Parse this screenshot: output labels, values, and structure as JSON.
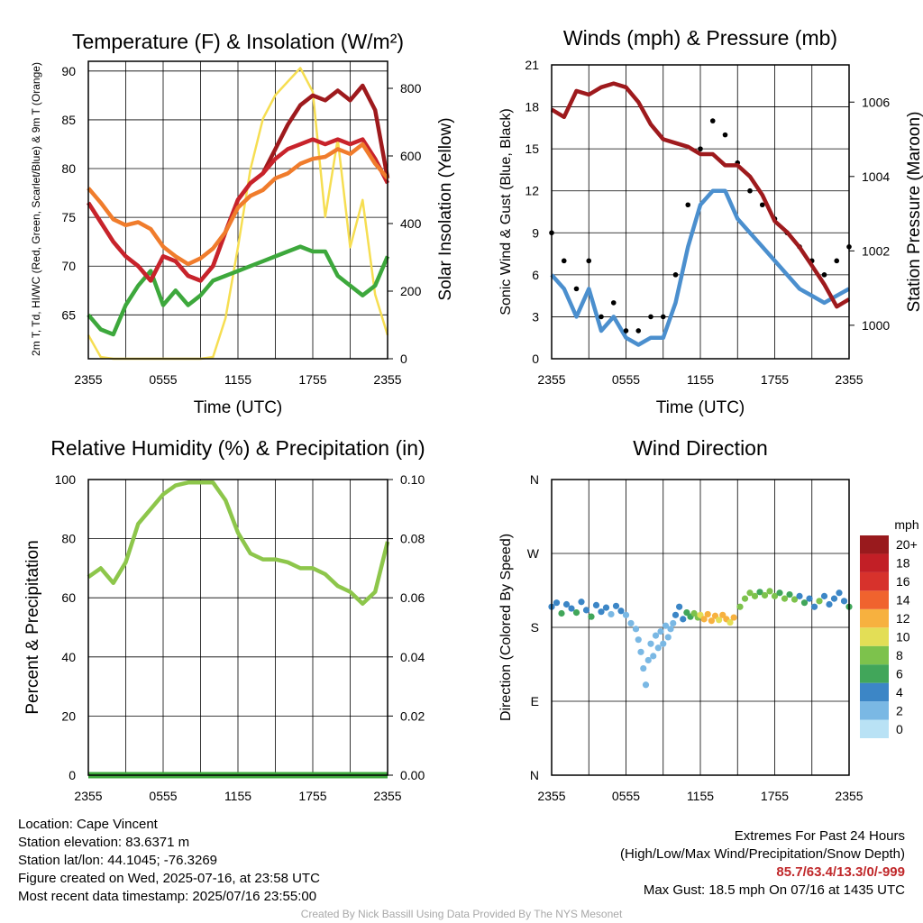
{
  "chart_data": [
    {
      "type": "line",
      "title": "Temperature (F) & Insolation (W/m²)",
      "xlabel": "Time (UTC)",
      "ylabel": "2m T, Td, HI/WC (Red, Green, Scarlet/Blue) & 9m T (Orange)",
      "y2label": "Solar Insolation (Yellow)",
      "x_ticks": [
        "2355",
        "0555",
        "1155",
        "1755",
        "2355"
      ],
      "ylim": [
        60.5,
        91
      ],
      "y_ticks": [
        "65",
        "70",
        "75",
        "80",
        "85",
        "90"
      ],
      "y2lim": [
        0,
        880
      ],
      "y2_ticks": [
        "0",
        "200",
        "400",
        "600",
        "800"
      ],
      "grid": true,
      "series": [
        {
          "name": "9m T",
          "color": "#f07c2c",
          "axis": "left",
          "x": [
            0,
            1,
            2,
            3,
            4,
            5,
            6,
            7,
            8,
            9,
            10,
            11,
            12,
            13,
            14,
            15,
            16,
            17,
            18,
            19,
            20,
            21,
            22,
            23,
            24
          ],
          "values": [
            78,
            76.5,
            74.8,
            74.2,
            74.5,
            73.8,
            72,
            71,
            70.2,
            70.8,
            71.8,
            73.5,
            76,
            77.2,
            77.8,
            79,
            79.5,
            80.5,
            81,
            81.2,
            82,
            81.5,
            82.5,
            80.5,
            79
          ]
        },
        {
          "name": "2m T",
          "color": "#c8232b",
          "axis": "left",
          "x": [
            0,
            1,
            2,
            3,
            4,
            5,
            6,
            7,
            8,
            9,
            10,
            11,
            12,
            13,
            14,
            15,
            16,
            17,
            18,
            19,
            20,
            21,
            22,
            23,
            24
          ],
          "values": [
            76.5,
            74.5,
            72.5,
            71,
            70,
            68.5,
            71,
            70.5,
            69,
            68.5,
            70,
            73.5,
            76.8,
            78.5,
            79.5,
            81,
            82,
            82.5,
            83,
            82.5,
            83,
            82.5,
            83,
            81,
            78.5
          ]
        },
        {
          "name": "HI/WC",
          "color": "#9e1a1d",
          "axis": "left",
          "x": [
            0,
            1,
            2,
            3,
            4,
            5,
            6,
            7,
            8,
            9,
            10,
            11,
            12,
            13,
            14,
            15,
            16,
            17,
            18,
            19,
            20,
            21,
            22,
            23,
            24
          ],
          "values": [
            76.5,
            74.5,
            72.5,
            71,
            70,
            68.5,
            71,
            70.5,
            69,
            68.5,
            70,
            73.5,
            76.8,
            78.5,
            79.5,
            82,
            84.5,
            86.5,
            87.5,
            87,
            88,
            87,
            88.5,
            86,
            79
          ]
        },
        {
          "name": "2m Td",
          "color": "#3da83c",
          "axis": "left",
          "x": [
            0,
            1,
            2,
            3,
            4,
            5,
            6,
            7,
            8,
            9,
            10,
            11,
            12,
            13,
            14,
            15,
            16,
            17,
            18,
            19,
            20,
            21,
            22,
            23,
            24
          ],
          "values": [
            65,
            63.5,
            63,
            66,
            68,
            69.5,
            66,
            67.5,
            66,
            67,
            68.5,
            69,
            69.5,
            70,
            70.5,
            71,
            71.5,
            72,
            71.5,
            71.5,
            69,
            68,
            67,
            68,
            71
          ]
        },
        {
          "name": "Solar Insolation",
          "color": "#f6de52",
          "axis": "right",
          "x": [
            0,
            1,
            2,
            3,
            4,
            5,
            6,
            7,
            8,
            9,
            10,
            11,
            12,
            13,
            14,
            15,
            16,
            17,
            18,
            19,
            20,
            21,
            22,
            23,
            24
          ],
          "values": [
            70,
            5,
            0,
            0,
            0,
            0,
            0,
            0,
            0,
            0,
            5,
            120,
            330,
            560,
            710,
            780,
            820,
            860,
            790,
            420,
            650,
            330,
            470,
            190,
            70
          ]
        }
      ]
    },
    {
      "type": "line",
      "title": "Winds (mph) & Pressure (mb)",
      "xlabel": "Time (UTC)",
      "ylabel": "Sonic Wind & Gust (Blue, Black)",
      "y2label": "Station Pressure (Maroon)",
      "x_ticks": [
        "2355",
        "0555",
        "1155",
        "1755",
        "2355"
      ],
      "ylim": [
        0,
        21
      ],
      "y_ticks": [
        "0",
        "3",
        "6",
        "9",
        "12",
        "15",
        "18",
        "21"
      ],
      "y2lim": [
        999.1,
        1007
      ],
      "y2_ticks": [
        "1000",
        "1002",
        "1004",
        "1006"
      ],
      "grid": true,
      "series": [
        {
          "name": "Sonic Wind",
          "color": "#4b8fce",
          "axis": "left",
          "x": [
            0,
            1,
            2,
            3,
            4,
            5,
            6,
            7,
            8,
            9,
            10,
            11,
            12,
            13,
            14,
            15,
            16,
            17,
            18,
            19,
            20,
            21,
            22,
            23,
            24
          ],
          "values": [
            6,
            5,
            3,
            5,
            2,
            3,
            1.5,
            1,
            1.5,
            1.5,
            4,
            8,
            11,
            12,
            12,
            10,
            9,
            8,
            7,
            6,
            5,
            4.5,
            4,
            4.5,
            5
          ]
        },
        {
          "name": "Gust",
          "color": "#000000",
          "axis": "left",
          "style": "dots",
          "x": [
            0,
            1,
            2,
            3,
            4,
            5,
            6,
            7,
            8,
            9,
            10,
            11,
            12,
            13,
            14,
            15,
            16,
            17,
            18,
            19,
            20,
            21,
            22,
            23,
            24
          ],
          "values": [
            9,
            7,
            5,
            7,
            3,
            4,
            2,
            2,
            3,
            3,
            6,
            11,
            15,
            17,
            16,
            14,
            12,
            11,
            10,
            9,
            8,
            7,
            6,
            7,
            8
          ]
        },
        {
          "name": "Station Pressure",
          "color": "#9e1a1d",
          "axis": "right",
          "x": [
            0,
            1,
            2,
            3,
            4,
            5,
            6,
            7,
            8,
            9,
            10,
            11,
            12,
            13,
            14,
            15,
            16,
            17,
            18,
            19,
            20,
            21,
            22,
            23,
            24
          ],
          "values": [
            1005.8,
            1005.6,
            1006.3,
            1006.2,
            1006.4,
            1006.5,
            1006.4,
            1006,
            1005.4,
            1005,
            1004.9,
            1004.8,
            1004.6,
            1004.6,
            1004.3,
            1004.3,
            1004,
            1003.5,
            1002.8,
            1002.5,
            1002.1,
            1001.6,
            1001.1,
            1000.5,
            1000.7
          ]
        }
      ]
    },
    {
      "type": "line",
      "title": "Relative Humidity (%) & Precipitation (in)",
      "xlabel": "",
      "ylabel": "Percent & Precipitation",
      "x_ticks": [
        "2355",
        "0555",
        "1155",
        "1755",
        "2355"
      ],
      "ylim": [
        0,
        100
      ],
      "y_ticks": [
        "0",
        "20",
        "40",
        "60",
        "80",
        "100"
      ],
      "y2lim": [
        0,
        0.1
      ],
      "y2_ticks": [
        "0.00",
        "0.02",
        "0.04",
        "0.06",
        "0.08",
        "0.10"
      ],
      "grid": true,
      "series": [
        {
          "name": "Relative Humidity",
          "color": "#8dc64b",
          "axis": "left",
          "x": [
            0,
            1,
            2,
            3,
            4,
            5,
            6,
            7,
            8,
            9,
            10,
            11,
            12,
            13,
            14,
            15,
            16,
            17,
            18,
            19,
            20,
            21,
            22,
            23,
            24
          ],
          "values": [
            67,
            70,
            65,
            72,
            85,
            90,
            95,
            98,
            99,
            99,
            99,
            93,
            82,
            75,
            73,
            73,
            72,
            70,
            70,
            68,
            64,
            62,
            58,
            62,
            79
          ]
        },
        {
          "name": "Precipitation",
          "color": "#3da83c",
          "axis": "right",
          "x": [
            0,
            24
          ],
          "values": [
            0,
            0
          ]
        }
      ]
    },
    {
      "type": "scatter",
      "title": "Wind Direction",
      "xlabel": "",
      "ylabel": "Direction (Colored By Speed)",
      "x_ticks": [
        "2355",
        "0555",
        "1155",
        "1755",
        "2355"
      ],
      "y_ticks": [
        "N",
        "E",
        "S",
        "W",
        "N"
      ],
      "ylim": [
        0,
        360
      ],
      "grid": true,
      "colorbar": {
        "title": "mph",
        "labels": [
          "0",
          "2",
          "4",
          "6",
          "8",
          "10",
          "12",
          "14",
          "16",
          "18",
          "20+"
        ],
        "colors": [
          "#b9e2f5",
          "#7ab8e4",
          "#3c86c6",
          "#41a65a",
          "#7dc24c",
          "#e3de56",
          "#f7b13f",
          "#f0632e",
          "#d7322c",
          "#c21f26",
          "#991a1d"
        ]
      },
      "points": [
        {
          "x": 0.0,
          "dir": 205,
          "speed": 4
        },
        {
          "x": 0.4,
          "dir": 210,
          "speed": 4
        },
        {
          "x": 0.8,
          "dir": 197,
          "speed": 6
        },
        {
          "x": 1.2,
          "dir": 208,
          "speed": 4
        },
        {
          "x": 1.6,
          "dir": 203,
          "speed": 4
        },
        {
          "x": 2.0,
          "dir": 198,
          "speed": 6
        },
        {
          "x": 2.4,
          "dir": 211,
          "speed": 4
        },
        {
          "x": 2.8,
          "dir": 201,
          "speed": 4
        },
        {
          "x": 3.2,
          "dir": 193,
          "speed": 6
        },
        {
          "x": 3.6,
          "dir": 207,
          "speed": 4
        },
        {
          "x": 4.0,
          "dir": 199,
          "speed": 4
        },
        {
          "x": 4.4,
          "dir": 204,
          "speed": 4
        },
        {
          "x": 4.8,
          "dir": 196,
          "speed": 2
        },
        {
          "x": 5.2,
          "dir": 206,
          "speed": 4
        },
        {
          "x": 5.6,
          "dir": 200,
          "speed": 4
        },
        {
          "x": 6.0,
          "dir": 195,
          "speed": 2
        },
        {
          "x": 6.4,
          "dir": 185,
          "speed": 2
        },
        {
          "x": 6.8,
          "dir": 178,
          "speed": 1
        },
        {
          "x": 7.0,
          "dir": 165,
          "speed": 1
        },
        {
          "x": 7.2,
          "dir": 150,
          "speed": 2
        },
        {
          "x": 7.4,
          "dir": 130,
          "speed": 1
        },
        {
          "x": 7.6,
          "dir": 110,
          "speed": 2
        },
        {
          "x": 7.8,
          "dir": 140,
          "speed": 1
        },
        {
          "x": 8.0,
          "dir": 160,
          "speed": 2
        },
        {
          "x": 8.2,
          "dir": 145,
          "speed": 1
        },
        {
          "x": 8.4,
          "dir": 170,
          "speed": 2
        },
        {
          "x": 8.6,
          "dir": 155,
          "speed": 2
        },
        {
          "x": 8.8,
          "dir": 175,
          "speed": 2
        },
        {
          "x": 9.0,
          "dir": 160,
          "speed": 1
        },
        {
          "x": 9.2,
          "dir": 182,
          "speed": 2
        },
        {
          "x": 9.4,
          "dir": 168,
          "speed": 2
        },
        {
          "x": 9.6,
          "dir": 178,
          "speed": 2
        },
        {
          "x": 9.8,
          "dir": 185,
          "speed": 2
        },
        {
          "x": 10.0,
          "dir": 195,
          "speed": 3
        },
        {
          "x": 10.3,
          "dir": 205,
          "speed": 3
        },
        {
          "x": 10.6,
          "dir": 190,
          "speed": 4
        },
        {
          "x": 10.9,
          "dir": 198,
          "speed": 5
        },
        {
          "x": 11.2,
          "dir": 193,
          "speed": 6
        },
        {
          "x": 11.5,
          "dir": 197,
          "speed": 7
        },
        {
          "x": 11.8,
          "dir": 192,
          "speed": 8
        },
        {
          "x": 12.0,
          "dir": 195,
          "speed": 10
        },
        {
          "x": 12.3,
          "dir": 190,
          "speed": 11
        },
        {
          "x": 12.6,
          "dir": 196,
          "speed": 12
        },
        {
          "x": 12.9,
          "dir": 188,
          "speed": 11
        },
        {
          "x": 13.2,
          "dir": 194,
          "speed": 12
        },
        {
          "x": 13.5,
          "dir": 189,
          "speed": 10
        },
        {
          "x": 13.8,
          "dir": 195,
          "speed": 12
        },
        {
          "x": 14.1,
          "dir": 190,
          "speed": 11
        },
        {
          "x": 14.4,
          "dir": 186,
          "speed": 10
        },
        {
          "x": 14.7,
          "dir": 192,
          "speed": 12
        },
        {
          "x": 15.2,
          "dir": 205,
          "speed": 8
        },
        {
          "x": 15.6,
          "dir": 215,
          "speed": 8
        },
        {
          "x": 16.0,
          "dir": 222,
          "speed": 7
        },
        {
          "x": 16.4,
          "dir": 218,
          "speed": 8
        },
        {
          "x": 16.8,
          "dir": 223,
          "speed": 6
        },
        {
          "x": 17.2,
          "dir": 219,
          "speed": 8
        },
        {
          "x": 17.6,
          "dir": 224,
          "speed": 7
        },
        {
          "x": 18.0,
          "dir": 218,
          "speed": 8
        },
        {
          "x": 18.4,
          "dir": 222,
          "speed": 6
        },
        {
          "x": 18.8,
          "dir": 215,
          "speed": 8
        },
        {
          "x": 19.2,
          "dir": 220,
          "speed": 5
        },
        {
          "x": 19.6,
          "dir": 214,
          "speed": 8
        },
        {
          "x": 20.0,
          "dir": 218,
          "speed": 4
        },
        {
          "x": 20.4,
          "dir": 210,
          "speed": 6
        },
        {
          "x": 20.8,
          "dir": 215,
          "speed": 4
        },
        {
          "x": 21.2,
          "dir": 205,
          "speed": 4
        },
        {
          "x": 21.6,
          "dir": 212,
          "speed": 8
        },
        {
          "x": 22.0,
          "dir": 218,
          "speed": 4
        },
        {
          "x": 22.4,
          "dir": 208,
          "speed": 4
        },
        {
          "x": 22.8,
          "dir": 215,
          "speed": 4
        },
        {
          "x": 23.2,
          "dir": 222,
          "speed": 4
        },
        {
          "x": 23.6,
          "dir": 212,
          "speed": 4
        },
        {
          "x": 24.0,
          "dir": 205,
          "speed": 6
        }
      ]
    }
  ],
  "footer": {
    "location": "Location: Cape Vincent",
    "elevation": "Station elevation: 83.6371 m",
    "latlon": "Station lat/lon: 44.1045; -76.3269",
    "created": "Figure created on Wed, 2025-07-16, at 23:58 UTC",
    "recent": "Most recent data timestamp: 2025/07/16 23:55:00",
    "extremes_title": "Extremes For Past 24 Hours",
    "extremes_sub": "(High/Low/Max Wind/Precipitation/Snow Depth)",
    "extremes_values": "85.7/63.4/13.3/0/-999",
    "max_gust": "Max Gust: 18.5 mph On 07/16 at 1435 UTC",
    "credit": "Created By Nick Bassill Using Data Provided By The NYS Mesonet"
  },
  "colors": {
    "grid": "#000000",
    "text": "#000000",
    "credit": "#a8a8a8",
    "extremes": "#c0282a"
  }
}
